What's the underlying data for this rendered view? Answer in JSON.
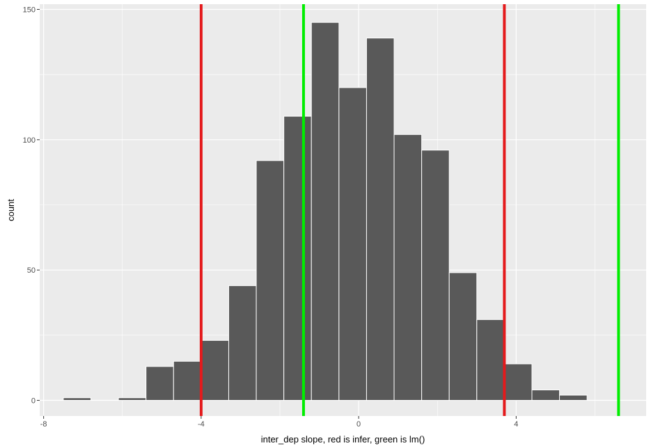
{
  "chart_data": {
    "type": "bar",
    "subtype": "histogram",
    "xlabel": "inter_dep slope, red is infer, green is lm()",
    "ylabel": "count",
    "xlim": [
      -8.1,
      7.3
    ],
    "ylim": [
      -6,
      152
    ],
    "x_ticks": [
      -8,
      -4,
      0,
      4
    ],
    "x_tick_labels": [
      "-8",
      "-4",
      "0",
      "4"
    ],
    "y_ticks": [
      0,
      50,
      100,
      150
    ],
    "y_tick_labels": [
      "0",
      "50",
      "100",
      "150"
    ],
    "bins": [
      {
        "x0": -7.5,
        "x1": -6.8,
        "count": 1
      },
      {
        "x0": -6.8,
        "x1": -6.1,
        "count": 0
      },
      {
        "x0": -6.1,
        "x1": -5.4,
        "count": 1
      },
      {
        "x0": -5.4,
        "x1": -4.7,
        "count": 13
      },
      {
        "x0": -4.7,
        "x1": -4.0,
        "count": 15
      },
      {
        "x0": -4.0,
        "x1": -3.3,
        "count": 23
      },
      {
        "x0": -3.3,
        "x1": -2.6,
        "count": 44
      },
      {
        "x0": -2.6,
        "x1": -1.9,
        "count": 92
      },
      {
        "x0": -1.9,
        "x1": -1.2,
        "count": 109
      },
      {
        "x0": -1.2,
        "x1": -0.5,
        "count": 145
      },
      {
        "x0": -0.5,
        "x1": 0.2,
        "count": 120
      },
      {
        "x0": 0.2,
        "x1": 0.9,
        "count": 139
      },
      {
        "x0": 0.9,
        "x1": 1.6,
        "count": 102
      },
      {
        "x0": 1.6,
        "x1": 2.3,
        "count": 96
      },
      {
        "x0": 2.3,
        "x1": 3.0,
        "count": 49
      },
      {
        "x0": 3.0,
        "x1": 3.7,
        "count": 31
      },
      {
        "x0": 3.7,
        "x1": 4.4,
        "count": 14
      },
      {
        "x0": 4.4,
        "x1": 5.1,
        "count": 4
      },
      {
        "x0": 5.1,
        "x1": 5.8,
        "count": 2
      }
    ],
    "vlines": [
      {
        "x": -4.0,
        "color": "#e41a1c"
      },
      {
        "x": 3.7,
        "color": "#e41a1c"
      },
      {
        "x": -1.4,
        "color": "#00ee00"
      },
      {
        "x": 6.6,
        "color": "#00ee00"
      }
    ],
    "colors": {
      "panel": "#ebebeb",
      "grid": "#ffffff",
      "bar_fill": "#595959",
      "bar_stroke": "#ffffff"
    }
  }
}
